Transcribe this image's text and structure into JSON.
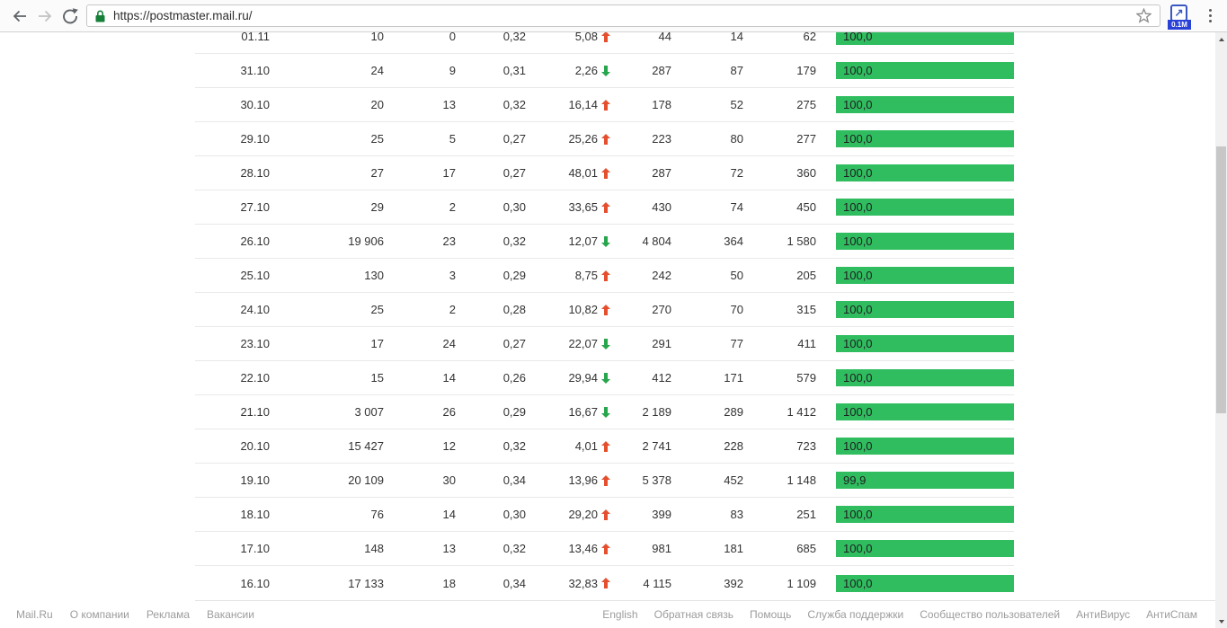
{
  "browser": {
    "url": "https://postmaster.mail.ru/",
    "extension_badge": "0.1M"
  },
  "colors": {
    "bar_green": "#2fbd60",
    "trend_up": "#e4502e",
    "trend_down": "#27a64d"
  },
  "table": {
    "rows": [
      {
        "date": "01.11",
        "c1": "10",
        "c2": "0",
        "c3": "0,32",
        "pct": "5,08",
        "dir": "up",
        "c5": "44",
        "c6": "14",
        "c7": "62",
        "bar": "100,0",
        "bar_pct": 100
      },
      {
        "date": "31.10",
        "c1": "24",
        "c2": "9",
        "c3": "0,31",
        "pct": "2,26",
        "dir": "down",
        "c5": "287",
        "c6": "87",
        "c7": "179",
        "bar": "100,0",
        "bar_pct": 100
      },
      {
        "date": "30.10",
        "c1": "20",
        "c2": "13",
        "c3": "0,32",
        "pct": "16,14",
        "dir": "up",
        "c5": "178",
        "c6": "52",
        "c7": "275",
        "bar": "100,0",
        "bar_pct": 100
      },
      {
        "date": "29.10",
        "c1": "25",
        "c2": "5",
        "c3": "0,27",
        "pct": "25,26",
        "dir": "up",
        "c5": "223",
        "c6": "80",
        "c7": "277",
        "bar": "100,0",
        "bar_pct": 100
      },
      {
        "date": "28.10",
        "c1": "27",
        "c2": "17",
        "c3": "0,27",
        "pct": "48,01",
        "dir": "up",
        "c5": "287",
        "c6": "72",
        "c7": "360",
        "bar": "100,0",
        "bar_pct": 100
      },
      {
        "date": "27.10",
        "c1": "29",
        "c2": "2",
        "c3": "0,30",
        "pct": "33,65",
        "dir": "up",
        "c5": "430",
        "c6": "74",
        "c7": "450",
        "bar": "100,0",
        "bar_pct": 100
      },
      {
        "date": "26.10",
        "c1": "19 906",
        "c2": "23",
        "c3": "0,32",
        "pct": "12,07",
        "dir": "down",
        "c5": "4 804",
        "c6": "364",
        "c7": "1 580",
        "bar": "100,0",
        "bar_pct": 100
      },
      {
        "date": "25.10",
        "c1": "130",
        "c2": "3",
        "c3": "0,29",
        "pct": "8,75",
        "dir": "up",
        "c5": "242",
        "c6": "50",
        "c7": "205",
        "bar": "100,0",
        "bar_pct": 100
      },
      {
        "date": "24.10",
        "c1": "25",
        "c2": "2",
        "c3": "0,28",
        "pct": "10,82",
        "dir": "up",
        "c5": "270",
        "c6": "70",
        "c7": "315",
        "bar": "100,0",
        "bar_pct": 100
      },
      {
        "date": "23.10",
        "c1": "17",
        "c2": "24",
        "c3": "0,27",
        "pct": "22,07",
        "dir": "down",
        "c5": "291",
        "c6": "77",
        "c7": "411",
        "bar": "100,0",
        "bar_pct": 100
      },
      {
        "date": "22.10",
        "c1": "15",
        "c2": "14",
        "c3": "0,26",
        "pct": "29,94",
        "dir": "down",
        "c5": "412",
        "c6": "171",
        "c7": "579",
        "bar": "100,0",
        "bar_pct": 100
      },
      {
        "date": "21.10",
        "c1": "3 007",
        "c2": "26",
        "c3": "0,29",
        "pct": "16,67",
        "dir": "down",
        "c5": "2 189",
        "c6": "289",
        "c7": "1 412",
        "bar": "100,0",
        "bar_pct": 100
      },
      {
        "date": "20.10",
        "c1": "15 427",
        "c2": "12",
        "c3": "0,32",
        "pct": "4,01",
        "dir": "up",
        "c5": "2 741",
        "c6": "228",
        "c7": "723",
        "bar": "100,0",
        "bar_pct": 100
      },
      {
        "date": "19.10",
        "c1": "20 109",
        "c2": "30",
        "c3": "0,34",
        "pct": "13,96",
        "dir": "up",
        "c5": "5 378",
        "c6": "452",
        "c7": "1 148",
        "bar": "99,9",
        "bar_pct": 99.9
      },
      {
        "date": "18.10",
        "c1": "76",
        "c2": "14",
        "c3": "0,30",
        "pct": "29,20",
        "dir": "up",
        "c5": "399",
        "c6": "83",
        "c7": "251",
        "bar": "100,0",
        "bar_pct": 100
      },
      {
        "date": "17.10",
        "c1": "148",
        "c2": "13",
        "c3": "0,32",
        "pct": "13,46",
        "dir": "up",
        "c5": "981",
        "c6": "181",
        "c7": "685",
        "bar": "100,0",
        "bar_pct": 100
      },
      {
        "date": "16.10",
        "c1": "17 133",
        "c2": "18",
        "c3": "0,34",
        "pct": "32,83",
        "dir": "up",
        "c5": "4 115",
        "c6": "392",
        "c7": "1 109",
        "bar": "100,0",
        "bar_pct": 100
      }
    ]
  },
  "footer": {
    "left_links": [
      "Mail.Ru",
      "О компании",
      "Реклама",
      "Вакансии"
    ],
    "right_links": [
      "English",
      "Обратная связь",
      "Помощь",
      "Служба поддержки",
      "Сообщество пользователей",
      "АнтиВирус",
      "АнтиСпам"
    ]
  }
}
